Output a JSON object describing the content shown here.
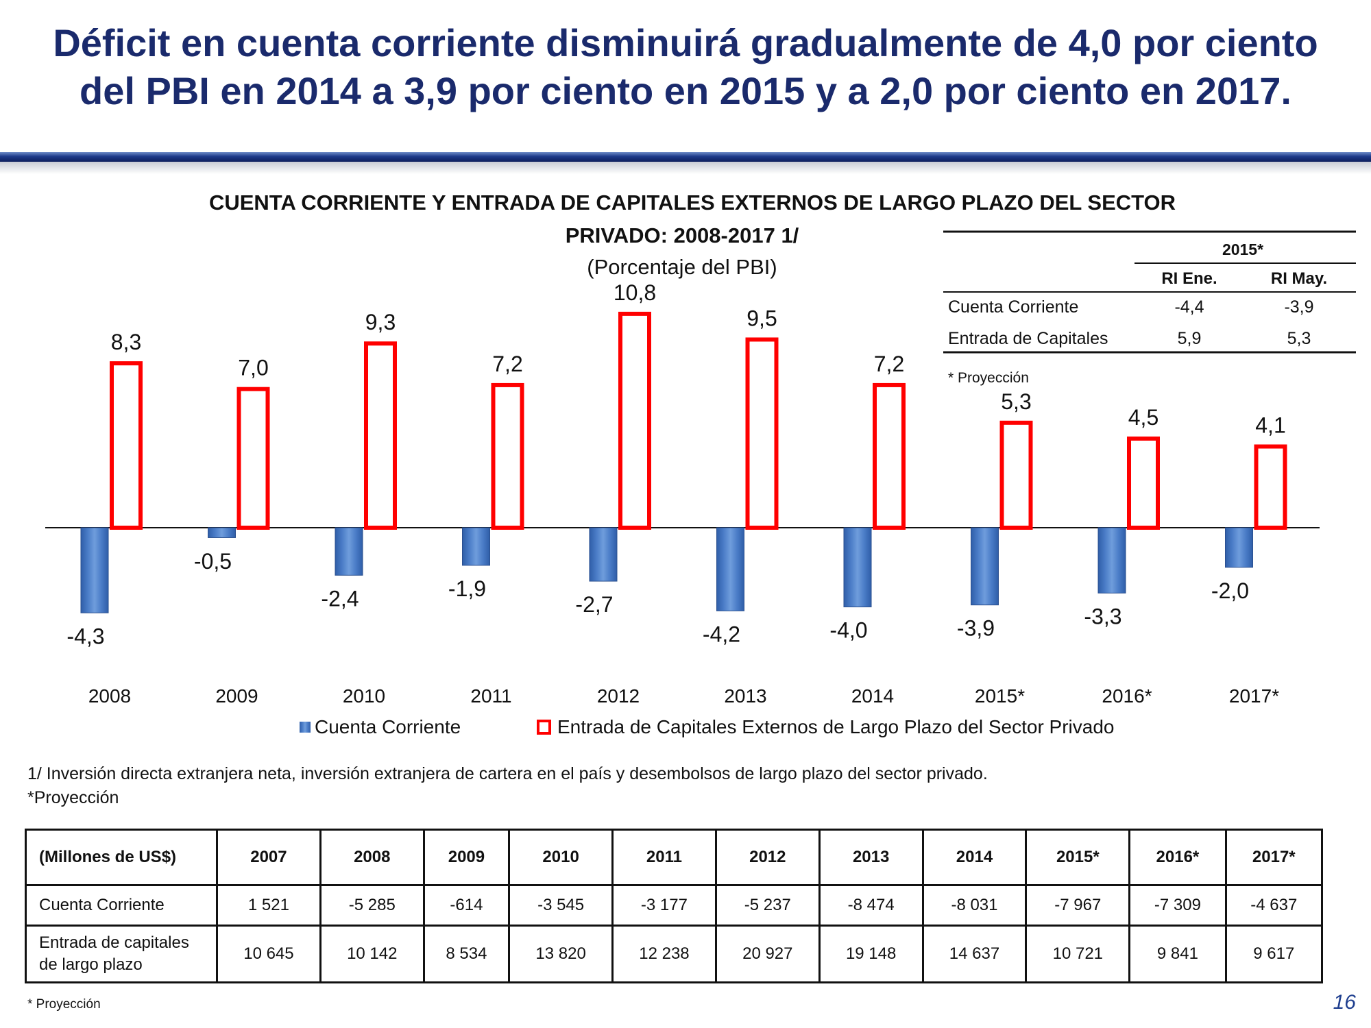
{
  "slide": {
    "title_line1": "Déficit en cuenta corriente disminuirá gradualmente de 4,0 por ciento",
    "title_line2": "del PBI en 2014 a 3,9 por ciento en 2015 y a 2,0 por ciento en 2017.",
    "page_number": "16",
    "footnote_line1": "1/ Inversión directa extranjera neta, inversión extranjera de cartera en el país  y desembolsos de largo plazo del sector privado.",
    "footnote_line2": "*Proyección",
    "bottom_note": "* Proyección"
  },
  "chart_data": {
    "type": "bar",
    "title_line1": "CUENTA CORRIENTE Y ENTRADA DE CAPITALES EXTERNOS DE LARGO PLAZO DEL SECTOR",
    "title_line2": "PRIVADO: 2008-2017 1/",
    "subtitle": "(Porcentaje del PBI)",
    "categories": [
      "2008",
      "2009",
      "2010",
      "2011",
      "2012",
      "2013",
      "2014",
      "2015*",
      "2016*",
      "2017*"
    ],
    "series": [
      {
        "name": "Cuenta Corriente",
        "values": [
          -4.3,
          -0.5,
          -2.4,
          -1.9,
          -2.7,
          -4.2,
          -4.0,
          -3.9,
          -3.3,
          -2.0
        ],
        "labels": [
          "-4,3",
          "-0,5",
          "-2,4",
          "-1,9",
          "-2,7",
          "-4,2",
          "-4,0",
          "-3,9",
          "-3,3",
          "-2,0"
        ],
        "color": "#4a7cc7"
      },
      {
        "name": "Entrada de Capitales Externos de Largo Plazo del Sector Privado",
        "values": [
          8.3,
          7.0,
          9.3,
          7.2,
          10.8,
          9.5,
          7.2,
          5.3,
          4.5,
          4.1
        ],
        "labels": [
          "8,3",
          "7,0",
          "9,3",
          "7,2",
          "10,8",
          "9,5",
          "7,2",
          "5,3",
          "4,5",
          "4,1"
        ],
        "color": "#ff0000"
      }
    ],
    "ylim": [
      -4.3,
      10.8
    ],
    "inset_table": {
      "group_header": "2015*",
      "columns": [
        "RI Ene.",
        "RI May."
      ],
      "rows": [
        {
          "label": "Cuenta Corriente",
          "values": [
            "-4,4",
            "-3,9"
          ]
        },
        {
          "label": "Entrada de Capitales",
          "values": [
            "5,9",
            "5,3"
          ]
        }
      ],
      "note": "* Proyección"
    }
  },
  "data_table": {
    "header_label": "(Millones de US$)",
    "years": [
      "2007",
      "2008",
      "2009",
      "2010",
      "2011",
      "2012",
      "2013",
      "2014",
      "2015*",
      "2016*",
      "2017*"
    ],
    "rows": [
      {
        "label": "Cuenta Corriente",
        "values": [
          "1 521",
          "-5 285",
          "-614",
          "-3 545",
          "-3 177",
          "-5 237",
          "-8 474",
          "-8 031",
          "-7 967",
          "-7 309",
          "-4 637"
        ]
      },
      {
        "label_line1": "Entrada de capitales",
        "label_line2": "de largo plazo",
        "values": [
          "10 645",
          "10 142",
          "8 534",
          "13 820",
          "12 238",
          "20 927",
          "19 148",
          "14 637",
          "10 721",
          "9 841",
          "9 617"
        ]
      }
    ]
  }
}
